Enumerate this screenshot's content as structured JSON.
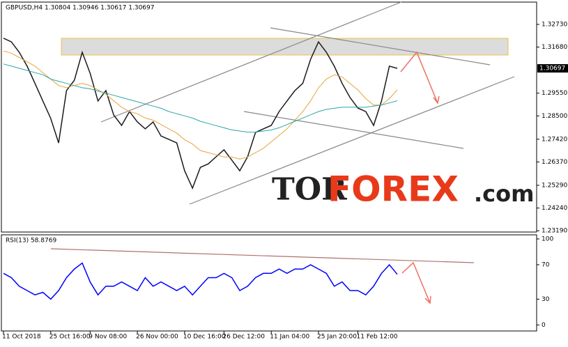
{
  "chart_data": [
    {
      "type": "line",
      "title": "GBPUSD,H4  1.30804 1.30946 1.30617 1.30697",
      "categories": [
        "11 Oct 2018",
        null,
        null,
        null,
        null,
        null,
        "25 Oct 16:00",
        null,
        null,
        null,
        null,
        "9 Nov 08:00",
        null,
        null,
        null,
        null,
        null,
        "26 Nov 00:00",
        null,
        null,
        null,
        null,
        null,
        "10 Dec 16:00",
        null,
        null,
        null,
        null,
        "26 Dec 12:00",
        null,
        null,
        null,
        null,
        null,
        "11 Jan 04:00",
        null,
        null,
        null,
        null,
        null,
        "25 Jan 20:00",
        null,
        null,
        null,
        null,
        "11 Feb 12:00",
        null,
        null,
        null,
        null,
        null
      ],
      "series": [
        {
          "color": "#1a1a1a",
          "values": [
            1.3209,
            1.3192,
            1.3144,
            1.308,
            1.3,
            1.2919,
            1.2838,
            1.2725,
            1.2967,
            1.3015,
            1.3144,
            1.3047,
            1.2919,
            1.2967,
            1.2854,
            1.2806,
            1.287,
            1.2822,
            1.279,
            1.2822,
            1.2757,
            1.2741,
            1.2725,
            1.2596,
            1.2516,
            1.2612,
            1.2628,
            1.2661,
            1.2693,
            1.2645,
            1.2596,
            1.2661,
            1.2773,
            1.279,
            1.2806,
            1.287,
            1.2919,
            1.2967,
            1.3,
            1.3112,
            1.3192,
            1.3144,
            1.308,
            1.3,
            1.2935,
            1.2886,
            1.287,
            1.2806,
            1.2919,
            1.308,
            1.30697
          ]
        },
        {
          "color": "#e8a33c",
          "values": [
            1.315,
            1.314,
            1.312,
            1.31,
            1.308,
            1.305,
            1.302,
            1.299,
            1.298,
            1.299,
            1.3,
            1.299,
            1.297,
            1.295,
            1.292,
            1.289,
            1.287,
            1.286,
            1.284,
            1.283,
            1.281,
            1.279,
            1.277,
            1.274,
            1.272,
            1.269,
            1.268,
            1.267,
            1.266,
            1.266,
            1.265,
            1.266,
            1.268,
            1.27,
            1.273,
            1.276,
            1.279,
            1.283,
            1.287,
            1.292,
            1.298,
            1.302,
            1.304,
            1.303,
            1.3,
            1.297,
            1.293,
            1.29,
            1.29,
            1.293,
            1.297
          ]
        },
        {
          "color": "#2aa7a7",
          "values": [
            1.309,
            1.308,
            1.307,
            1.306,
            1.305,
            1.304,
            1.302,
            1.301,
            1.3,
            1.299,
            1.298,
            1.2975,
            1.2965,
            1.2955,
            1.2945,
            1.2935,
            1.2925,
            1.2915,
            1.2905,
            1.2895,
            1.2885,
            1.287,
            1.286,
            1.285,
            1.284,
            1.2825,
            1.2815,
            1.2805,
            1.2795,
            1.2785,
            1.278,
            1.2775,
            1.2775,
            1.278,
            1.2785,
            1.2795,
            1.281,
            1.2825,
            1.284,
            1.2855,
            1.287,
            1.288,
            1.2885,
            1.289,
            1.289,
            1.289,
            1.289,
            1.2895,
            1.29,
            1.291,
            1.292
          ]
        }
      ],
      "ylim": [
        1.2313,
        1.3376
      ],
      "yticks": [
        {
          "value": 1.3273,
          "label": "1.32730"
        },
        {
          "value": 1.3168,
          "label": "1.31680"
        },
        {
          "value": 1.2955,
          "label": "1.29550"
        },
        {
          "value": 1.285,
          "label": "1.28500"
        },
        {
          "value": 1.2742,
          "label": "1.27420"
        },
        {
          "value": 1.2637,
          "label": "1.26370"
        },
        {
          "value": 1.2529,
          "label": "1.25290"
        },
        {
          "value": 1.2424,
          "label": "1.24240"
        },
        {
          "value": 1.2319,
          "label": "1.23190"
        }
      ],
      "last_price": {
        "value": 1.30697,
        "label": "1.30697"
      }
    },
    {
      "type": "line",
      "title": "RSI(13) 58.8769",
      "series": [
        {
          "color": "#0000ff",
          "values": [
            60,
            55,
            45,
            40,
            35,
            38,
            30,
            40,
            55,
            65,
            72,
            50,
            35,
            45,
            45,
            50,
            45,
            40,
            55,
            45,
            50,
            45,
            40,
            45,
            35,
            45,
            55,
            55,
            60,
            55,
            40,
            45,
            55,
            60,
            60,
            65,
            60,
            65,
            65,
            70,
            65,
            60,
            45,
            50,
            40,
            40,
            35,
            45,
            60,
            70,
            58.8769
          ]
        }
      ],
      "ylim": [
        -7,
        104
      ],
      "yticks": [
        100,
        70,
        30,
        0
      ]
    }
  ],
  "watermark": [
    "TOR",
    "FOREX",
    ".com"
  ]
}
